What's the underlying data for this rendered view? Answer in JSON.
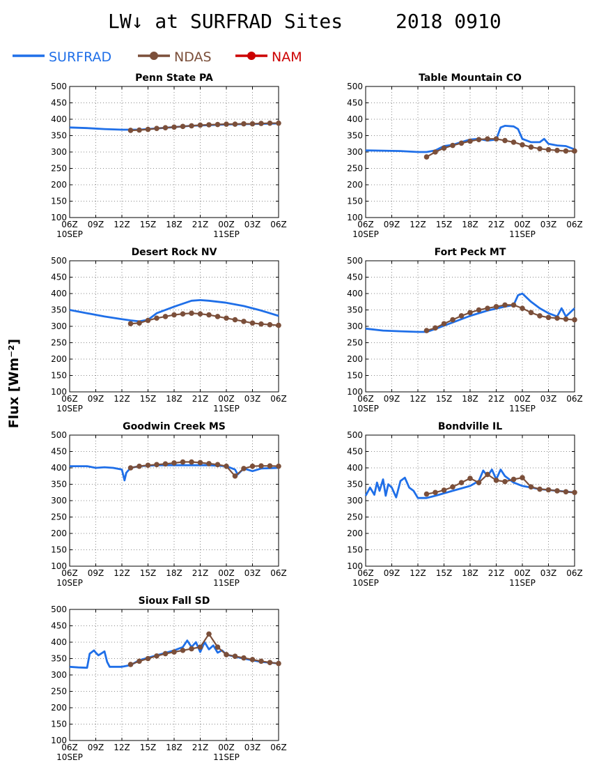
{
  "header": {
    "title_left": "LW↓ at SURFRAD Sites",
    "title_right": "2018 0910"
  },
  "y_axis_label": "Flux [Wm⁻²]",
  "legend": [
    {
      "name": "SURFRAD",
      "color": "#1f6fe8",
      "marker": "none"
    },
    {
      "name": "NDAS",
      "color": "#7b4f3a",
      "marker": "dot"
    },
    {
      "name": "NAM",
      "color": "#cc0000",
      "marker": "dot"
    }
  ],
  "colors": {
    "surfrad": "#1f6fe8",
    "ndas": "#7b4f3a",
    "nam": "#cc0000"
  },
  "chart_data": [
    {
      "type": "line",
      "title": "Penn State PA",
      "x_unit": "hours since 10SEP 06Z",
      "xlim": [
        0,
        24
      ],
      "ylim": [
        100,
        500
      ],
      "x_ticks": [
        "06Z",
        "09Z",
        "12Z",
        "15Z",
        "18Z",
        "21Z",
        "00Z",
        "03Z",
        "06Z"
      ],
      "y_ticks": [
        "100",
        "150",
        "200",
        "250",
        "300",
        "350",
        "400",
        "450",
        "500"
      ],
      "date_labels": [
        {
          "at": 0,
          "text": "10SEP"
        },
        {
          "at": 18,
          "text": "11SEP"
        }
      ],
      "series": [
        {
          "name": "SURFRAD",
          "x": [
            0,
            2,
            4,
            6,
            8,
            10,
            12,
            14,
            16,
            18,
            20,
            22,
            24
          ],
          "y": [
            375,
            373,
            370,
            368,
            368,
            372,
            376,
            380,
            382,
            384,
            385,
            386,
            387
          ]
        },
        {
          "name": "NDAS",
          "x": [
            7,
            8,
            9,
            10,
            11,
            12,
            13,
            14,
            15,
            16,
            17,
            18,
            19,
            20,
            21,
            22,
            23,
            24
          ],
          "y": [
            366,
            367,
            369,
            372,
            374,
            376,
            378,
            380,
            382,
            383,
            384,
            385,
            385,
            386,
            386,
            387,
            388,
            388
          ]
        }
      ]
    },
    {
      "type": "line",
      "title": "Table Mountain CO",
      "x_unit": "hours since 10SEP 06Z",
      "xlim": [
        0,
        24
      ],
      "ylim": [
        100,
        500
      ],
      "x_ticks": [
        "06Z",
        "09Z",
        "12Z",
        "15Z",
        "18Z",
        "21Z",
        "00Z",
        "03Z",
        "06Z"
      ],
      "y_ticks": [
        "100",
        "150",
        "200",
        "250",
        "300",
        "350",
        "400",
        "450",
        "500"
      ],
      "date_labels": [
        {
          "at": 0,
          "text": "10SEP"
        },
        {
          "at": 18,
          "text": "11SEP"
        }
      ],
      "series": [
        {
          "name": "SURFRAD",
          "x": [
            0,
            2,
            4,
            6,
            7,
            8,
            9,
            10,
            11,
            12,
            13,
            14,
            15,
            15.5,
            16,
            17,
            17.5,
            18,
            19,
            20,
            20.5,
            21,
            22,
            23,
            24
          ],
          "y": [
            305,
            304,
            303,
            300,
            300,
            305,
            318,
            322,
            330,
            338,
            340,
            335,
            338,
            375,
            380,
            378,
            370,
            340,
            330,
            330,
            340,
            325,
            320,
            318,
            308
          ]
        },
        {
          "name": "NDAS",
          "x": [
            7,
            8,
            9,
            10,
            11,
            12,
            13,
            14,
            15,
            16,
            17,
            18,
            19,
            20,
            21,
            22,
            23,
            24
          ],
          "y": [
            285,
            300,
            312,
            320,
            327,
            333,
            338,
            340,
            340,
            335,
            330,
            322,
            315,
            310,
            307,
            305,
            303,
            303
          ]
        }
      ]
    },
    {
      "type": "line",
      "title": "Desert Rock NV",
      "x_unit": "hours since 10SEP 06Z",
      "xlim": [
        0,
        24
      ],
      "ylim": [
        100,
        500
      ],
      "x_ticks": [
        "06Z",
        "09Z",
        "12Z",
        "15Z",
        "18Z",
        "21Z",
        "00Z",
        "03Z",
        "06Z"
      ],
      "y_ticks": [
        "100",
        "150",
        "200",
        "250",
        "300",
        "350",
        "400",
        "450",
        "500"
      ],
      "date_labels": [
        {
          "at": 0,
          "text": "10SEP"
        },
        {
          "at": 18,
          "text": "11SEP"
        }
      ],
      "series": [
        {
          "name": "SURFRAD",
          "x": [
            0,
            2,
            4,
            6,
            7,
            8,
            9,
            10,
            12,
            14,
            15,
            16,
            18,
            20,
            22,
            24
          ],
          "y": [
            350,
            340,
            330,
            322,
            318,
            315,
            320,
            340,
            360,
            378,
            380,
            378,
            372,
            362,
            348,
            332
          ]
        },
        {
          "name": "NDAS",
          "x": [
            7,
            8,
            9,
            10,
            11,
            12,
            13,
            14,
            15,
            16,
            17,
            18,
            19,
            20,
            21,
            22,
            23,
            24
          ],
          "y": [
            308,
            310,
            318,
            325,
            330,
            335,
            338,
            340,
            338,
            335,
            330,
            325,
            320,
            315,
            310,
            307,
            305,
            303
          ]
        }
      ]
    },
    {
      "type": "line",
      "title": "Fort Peck MT",
      "x_unit": "hours since 10SEP 06Z",
      "xlim": [
        0,
        24
      ],
      "ylim": [
        100,
        500
      ],
      "x_ticks": [
        "06Z",
        "09Z",
        "12Z",
        "15Z",
        "18Z",
        "21Z",
        "00Z",
        "03Z",
        "06Z"
      ],
      "y_ticks": [
        "100",
        "150",
        "200",
        "250",
        "300",
        "350",
        "400",
        "450",
        "500"
      ],
      "date_labels": [
        {
          "at": 0,
          "text": "10SEP"
        },
        {
          "at": 18,
          "text": "11SEP"
        }
      ],
      "series": [
        {
          "name": "SURFRAD",
          "x": [
            0,
            2,
            4,
            6,
            7,
            8,
            10,
            12,
            14,
            16,
            17,
            17.5,
            18,
            19,
            20,
            21,
            22,
            22.5,
            23,
            24
          ],
          "y": [
            293,
            287,
            285,
            283,
            283,
            292,
            312,
            332,
            348,
            360,
            365,
            395,
            400,
            375,
            355,
            340,
            330,
            355,
            330,
            355
          ]
        },
        {
          "name": "NDAS",
          "x": [
            7,
            8,
            9,
            10,
            11,
            12,
            13,
            14,
            15,
            16,
            17,
            18,
            19,
            20,
            21,
            22,
            23,
            24
          ],
          "y": [
            287,
            295,
            308,
            320,
            332,
            342,
            350,
            355,
            360,
            365,
            365,
            355,
            342,
            332,
            327,
            325,
            322,
            320
          ]
        }
      ]
    },
    {
      "type": "line",
      "title": "Goodwin Creek MS",
      "x_unit": "hours since 10SEP 06Z",
      "xlim": [
        0,
        24
      ],
      "ylim": [
        100,
        500
      ],
      "x_ticks": [
        "06Z",
        "09Z",
        "12Z",
        "15Z",
        "18Z",
        "21Z",
        "00Z",
        "03Z",
        "06Z"
      ],
      "y_ticks": [
        "100",
        "150",
        "200",
        "250",
        "300",
        "350",
        "400",
        "450",
        "500"
      ],
      "date_labels": [
        {
          "at": 0,
          "text": "10SEP"
        },
        {
          "at": 18,
          "text": "11SEP"
        }
      ],
      "series": [
        {
          "name": "SURFRAD",
          "x": [
            0,
            2,
            3,
            4,
            5,
            6,
            6.3,
            6.5,
            7,
            8,
            10,
            12,
            14,
            16,
            18,
            19,
            19.3,
            20,
            21,
            22,
            24
          ],
          "y": [
            405,
            405,
            400,
            402,
            400,
            395,
            362,
            385,
            400,
            405,
            408,
            408,
            408,
            408,
            405,
            395,
            380,
            398,
            390,
            398,
            400
          ]
        },
        {
          "name": "NDAS",
          "x": [
            7,
            8,
            9,
            10,
            11,
            12,
            13,
            14,
            15,
            16,
            17,
            18,
            19,
            20,
            21,
            22,
            23,
            24
          ],
          "y": [
            400,
            405,
            408,
            410,
            412,
            415,
            418,
            418,
            416,
            413,
            410,
            405,
            375,
            398,
            405,
            406,
            406,
            405
          ]
        }
      ]
    },
    {
      "type": "line",
      "title": "Bondville IL",
      "x_unit": "hours since 10SEP 06Z",
      "xlim": [
        0,
        24
      ],
      "ylim": [
        100,
        500
      ],
      "x_ticks": [
        "06Z",
        "09Z",
        "12Z",
        "15Z",
        "18Z",
        "21Z",
        "00Z",
        "03Z",
        "06Z"
      ],
      "y_ticks": [
        "100",
        "150",
        "200",
        "250",
        "300",
        "350",
        "400",
        "450",
        "500"
      ],
      "date_labels": [
        {
          "at": 0,
          "text": "10SEP"
        },
        {
          "at": 18,
          "text": "11SEP"
        }
      ],
      "series": [
        {
          "name": "SURFRAD",
          "x": [
            0,
            0.5,
            1,
            1.3,
            1.6,
            2,
            2.3,
            2.6,
            3,
            3.5,
            4,
            4.5,
            5,
            5.5,
            6,
            7,
            8,
            10,
            12,
            13,
            13.5,
            14,
            14.5,
            15,
            15.5,
            16,
            17,
            18,
            20,
            22,
            24
          ],
          "y": [
            315,
            340,
            318,
            355,
            330,
            365,
            315,
            350,
            340,
            310,
            360,
            370,
            340,
            330,
            308,
            308,
            315,
            330,
            345,
            360,
            392,
            375,
            395,
            365,
            395,
            375,
            355,
            345,
            335,
            330,
            325
          ]
        },
        {
          "name": "NDAS",
          "x": [
            7,
            8,
            9,
            10,
            11,
            12,
            13,
            14,
            15,
            16,
            17,
            18,
            19,
            20,
            21,
            22,
            23,
            24
          ],
          "y": [
            320,
            325,
            332,
            342,
            355,
            368,
            355,
            380,
            362,
            358,
            365,
            370,
            342,
            335,
            333,
            330,
            327,
            325
          ]
        }
      ]
    },
    {
      "type": "line",
      "title": "Sioux Fall SD",
      "x_unit": "hours since 10SEP 06Z",
      "xlim": [
        0,
        24
      ],
      "ylim": [
        100,
        500
      ],
      "x_ticks": [
        "06Z",
        "09Z",
        "12Z",
        "15Z",
        "18Z",
        "21Z",
        "00Z",
        "03Z",
        "06Z"
      ],
      "y_ticks": [
        "100",
        "150",
        "200",
        "250",
        "300",
        "350",
        "400",
        "450",
        "500"
      ],
      "date_labels": [
        {
          "at": 0,
          "text": "10SEP"
        },
        {
          "at": 18,
          "text": "11SEP"
        }
      ],
      "series": [
        {
          "name": "SURFRAD",
          "x": [
            0,
            1,
            2,
            2.3,
            2.8,
            3,
            3.3,
            3.6,
            4,
            4.3,
            4.6,
            5,
            6,
            7,
            8,
            10,
            12,
            13,
            13.5,
            14,
            14.5,
            15,
            15.5,
            16,
            16.5,
            17,
            17.5,
            18,
            20,
            22,
            24
          ],
          "y": [
            325,
            323,
            322,
            365,
            375,
            368,
            360,
            365,
            372,
            340,
            325,
            325,
            325,
            330,
            345,
            360,
            375,
            385,
            405,
            385,
            400,
            370,
            400,
            378,
            390,
            368,
            375,
            362,
            350,
            340,
            335
          ]
        },
        {
          "name": "NDAS",
          "x": [
            7,
            8,
            9,
            10,
            11,
            12,
            13,
            14,
            15,
            16,
            17,
            18,
            19,
            20,
            21,
            22,
            23,
            24
          ],
          "y": [
            332,
            342,
            350,
            358,
            365,
            370,
            375,
            380,
            385,
            425,
            385,
            362,
            357,
            352,
            347,
            342,
            338,
            335
          ]
        }
      ]
    }
  ]
}
